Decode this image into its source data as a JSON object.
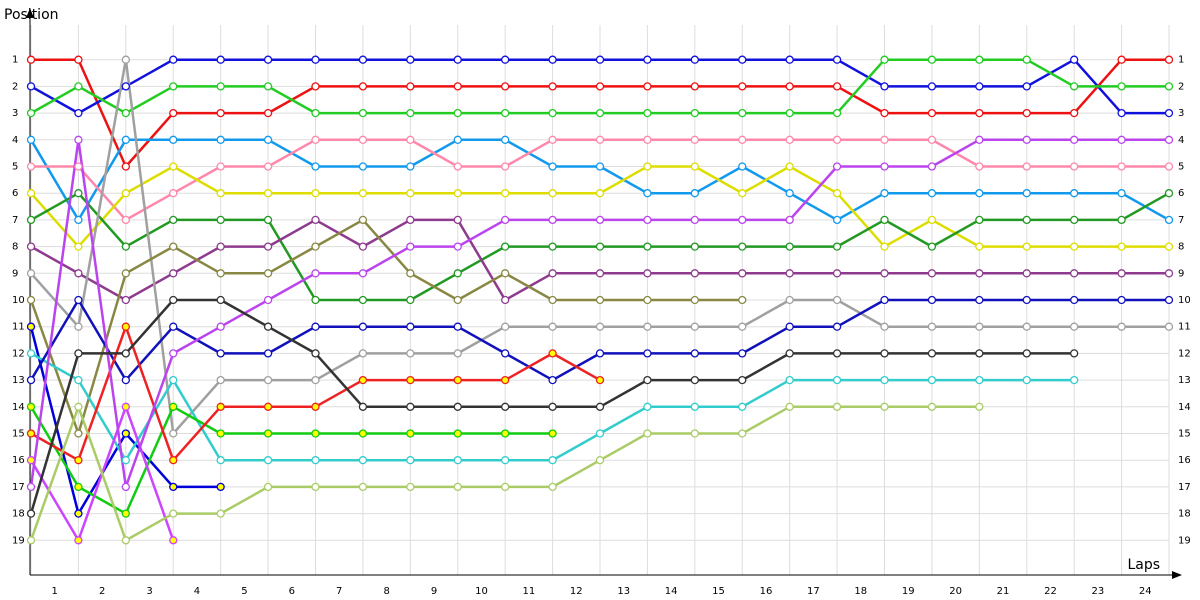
{
  "chart_data": {
    "type": "line",
    "y_label": "Position",
    "x_label": "Laps",
    "x": [
      0,
      1,
      2,
      3,
      4,
      5,
      6,
      7,
      8,
      9,
      10,
      11,
      12,
      13,
      14,
      15,
      16,
      17,
      18,
      19,
      20,
      21,
      22,
      23,
      24
    ],
    "xlim": [
      0,
      24
    ],
    "xticks": [
      {
        "value": 0.5,
        "label": "1"
      },
      {
        "value": 1.5,
        "label": "2"
      },
      {
        "value": 2.5,
        "label": "3"
      },
      {
        "value": 3.5,
        "label": "4"
      },
      {
        "value": 4.5,
        "label": "5"
      },
      {
        "value": 5.5,
        "label": "6"
      },
      {
        "value": 6.5,
        "label": "7"
      },
      {
        "value": 7.5,
        "label": "8"
      },
      {
        "value": 8.5,
        "label": "9"
      },
      {
        "value": 9.5,
        "label": "10"
      },
      {
        "value": 10.5,
        "label": "11"
      },
      {
        "value": 11.5,
        "label": "12"
      },
      {
        "value": 12.5,
        "label": "13"
      },
      {
        "value": 13.5,
        "label": "14"
      },
      {
        "value": 14.5,
        "label": "15"
      },
      {
        "value": 15.5,
        "label": "16"
      },
      {
        "value": 16.5,
        "label": "17"
      },
      {
        "value": 17.5,
        "label": "18"
      },
      {
        "value": 18.5,
        "label": "19"
      },
      {
        "value": 19.5,
        "label": "20"
      },
      {
        "value": 20.5,
        "label": "21"
      },
      {
        "value": 21.5,
        "label": "22"
      },
      {
        "value": 22.5,
        "label": "23"
      },
      {
        "value": 23.5,
        "label": "24"
      }
    ],
    "ylim": [
      -0.3,
      20.3
    ],
    "y_inverted": true,
    "yticks": [
      1,
      2,
      3,
      4,
      5,
      6,
      7,
      8,
      9,
      10,
      11,
      12,
      13,
      14,
      15,
      16,
      17,
      18,
      19
    ],
    "grid": true,
    "series": [
      {
        "color": "#ee1111",
        "marker_fill": "#ffffff",
        "values": [
          1,
          1,
          5,
          3,
          3,
          3,
          2,
          2,
          2,
          2,
          2,
          2,
          2,
          2,
          2,
          2,
          2,
          2,
          3,
          3,
          3,
          3,
          3,
          1,
          1
        ]
      },
      {
        "color": "#1111dd",
        "marker_fill": "#ffffff",
        "values": [
          2,
          3,
          2,
          1,
          1,
          1,
          1,
          1,
          1,
          1,
          1,
          1,
          1,
          1,
          1,
          1,
          1,
          1,
          2,
          2,
          2,
          2,
          1,
          3,
          3
        ]
      },
      {
        "color": "#22cc22",
        "marker_fill": "#ffffff",
        "values": [
          3,
          2,
          3,
          2,
          2,
          2,
          3,
          3,
          3,
          3,
          3,
          3,
          3,
          3,
          3,
          3,
          3,
          3,
          1,
          1,
          1,
          1,
          2,
          2,
          2
        ]
      },
      {
        "color": "#1199ee",
        "marker_fill": "#ffffff",
        "values": [
          4,
          7,
          4,
          4,
          4,
          4,
          5,
          5,
          5,
          4,
          4,
          5,
          5,
          6,
          6,
          5,
          6,
          7,
          6,
          6,
          6,
          6,
          6,
          6,
          7
        ]
      },
      {
        "color": "#ff88aa",
        "marker_fill": "#ffffff",
        "values": [
          5,
          5,
          7,
          6,
          5,
          5,
          4,
          4,
          4,
          5,
          5,
          4,
          4,
          4,
          4,
          4,
          4,
          4,
          4,
          4,
          5,
          5,
          5,
          5,
          5
        ]
      },
      {
        "color": "#dddd00",
        "marker_fill": "#ffffff",
        "values": [
          6,
          8,
          6,
          5,
          6,
          6,
          6,
          6,
          6,
          6,
          6,
          6,
          6,
          5,
          5,
          6,
          5,
          6,
          8,
          7,
          8,
          8,
          8,
          8,
          8
        ]
      },
      {
        "color": "#229922",
        "marker_fill": "#ffffff",
        "values": [
          7,
          6,
          8,
          7,
          7,
          7,
          10,
          10,
          10,
          9,
          8,
          8,
          8,
          8,
          8,
          8,
          8,
          8,
          7,
          8,
          7,
          7,
          7,
          7,
          6
        ]
      },
      {
        "color": "#8e3a8e",
        "marker_fill": "#ffffff",
        "values": [
          8,
          9,
          10,
          9,
          8,
          8,
          7,
          8,
          7,
          7,
          10,
          9,
          9,
          9,
          9,
          9,
          9,
          9,
          9,
          9,
          9,
          9,
          9,
          9,
          9
        ]
      },
      {
        "color": "#a0a0a0",
        "marker_fill": "#ffffff",
        "values": [
          9,
          11,
          1,
          15,
          13,
          13,
          13,
          12,
          12,
          12,
          11,
          11,
          11,
          11,
          11,
          11,
          10,
          10,
          11,
          11,
          11,
          11,
          11,
          11,
          11
        ]
      },
      {
        "color": "#888844",
        "marker_fill": "#ffffff",
        "values": [
          10,
          15,
          9,
          8,
          9,
          9,
          8,
          7,
          9,
          10,
          9,
          10,
          10,
          10,
          10,
          10,
          null,
          null,
          null,
          null,
          null,
          null,
          null,
          null,
          null
        ]
      },
      {
        "color": "#0000dd",
        "marker_fill": "#ffff00",
        "values": [
          11,
          18,
          15,
          17,
          17,
          null,
          null,
          null,
          null,
          null,
          null,
          null,
          null,
          null,
          null,
          null,
          null,
          null,
          null,
          null,
          null,
          null,
          null,
          null,
          null
        ]
      },
      {
        "color": "#33cccc",
        "marker_fill": "#ffffff",
        "values": [
          12,
          13,
          16,
          13,
          16,
          16,
          16,
          16,
          16,
          16,
          16,
          16,
          15,
          14,
          14,
          14,
          13,
          13,
          13,
          13,
          13,
          13,
          13,
          null,
          null
        ]
      },
      {
        "color": "#1111bb",
        "marker_fill": "#ffffff",
        "values": [
          13,
          10,
          13,
          11,
          12,
          12,
          11,
          11,
          11,
          11,
          12,
          13,
          12,
          12,
          12,
          12,
          11,
          11,
          10,
          10,
          10,
          10,
          10,
          10,
          10
        ]
      },
      {
        "color": "#11cc11",
        "marker_fill": "#ffff00",
        "values": [
          14,
          17,
          18,
          14,
          15,
          15,
          15,
          15,
          15,
          15,
          15,
          15,
          null,
          null,
          null,
          null,
          null,
          null,
          null,
          null,
          null,
          null,
          null,
          null,
          null
        ]
      },
      {
        "color": "#ee2222",
        "marker_fill": "#ffff00",
        "values": [
          15,
          16,
          11,
          16,
          14,
          14,
          14,
          13,
          13,
          13,
          13,
          12,
          13,
          null,
          null,
          null,
          null,
          null,
          null,
          null,
          null,
          null,
          null,
          null,
          null
        ]
      },
      {
        "color": "#cc44ff",
        "marker_fill": "#ffff00",
        "values": [
          16,
          19,
          14,
          19,
          null,
          null,
          null,
          null,
          null,
          null,
          null,
          null,
          null,
          null,
          null,
          null,
          null,
          null,
          null,
          null,
          null,
          null,
          null,
          null,
          null
        ]
      },
      {
        "color": "#bb44ee",
        "marker_fill": "#ffffff",
        "values": [
          17,
          4,
          17,
          12,
          11,
          10,
          9,
          9,
          8,
          8,
          7,
          7,
          7,
          7,
          7,
          7,
          7,
          5,
          5,
          5,
          4,
          4,
          4,
          4,
          4
        ]
      },
      {
        "color": "#333333",
        "marker_fill": "#ffffff",
        "values": [
          18,
          12,
          12,
          10,
          10,
          11,
          12,
          14,
          14,
          14,
          14,
          14,
          14,
          13,
          13,
          13,
          12,
          12,
          12,
          12,
          12,
          12,
          12,
          null,
          null
        ]
      },
      {
        "color": "#aacc66",
        "marker_fill": "#ffffff",
        "values": [
          19,
          14,
          19,
          18,
          18,
          17,
          17,
          17,
          17,
          17,
          17,
          17,
          16,
          15,
          15,
          15,
          14,
          14,
          14,
          14,
          14,
          null,
          null,
          null,
          null
        ]
      }
    ]
  }
}
